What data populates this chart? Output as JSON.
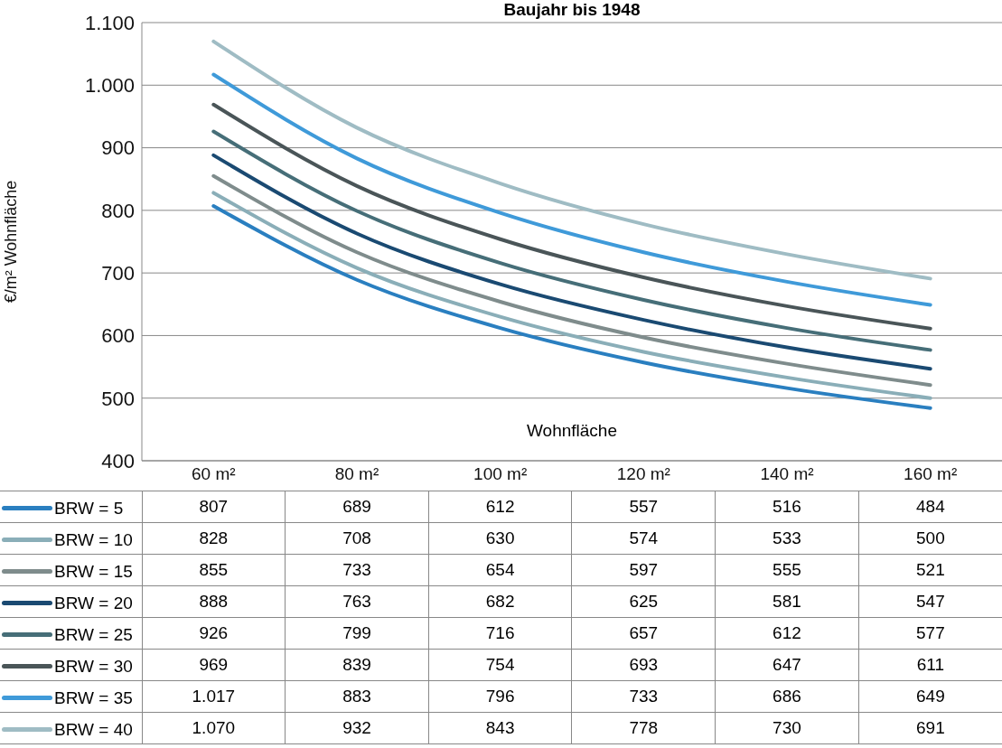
{
  "chart_data": {
    "type": "line",
    "title": "Baujahr bis 1948",
    "xlabel": "Wohnfläche",
    "ylabel": "€/m² Wohnfläche",
    "categories": [
      "60 m²",
      "80 m²",
      "100 m²",
      "120 m²",
      "140 m²",
      "160 m²"
    ],
    "series": [
      {
        "name": "BRW = 5",
        "color": "#2a7fc0",
        "values": [
          807,
          689,
          612,
          557,
          516,
          484
        ],
        "value_labels": [
          "807",
          "689",
          "612",
          "557",
          "516",
          "484"
        ]
      },
      {
        "name": "BRW = 10",
        "color": "#8aaeb8",
        "values": [
          828,
          708,
          630,
          574,
          533,
          500
        ],
        "value_labels": [
          "828",
          "708",
          "630",
          "574",
          "533",
          "500"
        ]
      },
      {
        "name": "BRW = 15",
        "color": "#7f8c8c",
        "values": [
          855,
          733,
          654,
          597,
          555,
          521
        ],
        "value_labels": [
          "855",
          "733",
          "654",
          "597",
          "555",
          "521"
        ]
      },
      {
        "name": "BRW = 20",
        "color": "#1a4a72",
        "values": [
          888,
          763,
          682,
          625,
          581,
          547
        ],
        "value_labels": [
          "888",
          "763",
          "682",
          "625",
          "581",
          "547"
        ]
      },
      {
        "name": "BRW = 25",
        "color": "#466e78",
        "values": [
          926,
          799,
          716,
          657,
          612,
          577
        ],
        "value_labels": [
          "926",
          "799",
          "716",
          "657",
          "612",
          "577"
        ]
      },
      {
        "name": "BRW = 30",
        "color": "#4a5558",
        "values": [
          969,
          839,
          754,
          693,
          647,
          611
        ],
        "value_labels": [
          "969",
          "839",
          "754",
          "693",
          "647",
          "611"
        ]
      },
      {
        "name": "BRW = 35",
        "color": "#3f9ad9",
        "values": [
          1017,
          883,
          796,
          733,
          686,
          649
        ],
        "value_labels": [
          "1.017",
          "883",
          "796",
          "733",
          "686",
          "649"
        ]
      },
      {
        "name": "BRW = 40",
        "color": "#9fbcc4",
        "values": [
          1070,
          932,
          843,
          778,
          730,
          691
        ],
        "value_labels": [
          "1.070",
          "932",
          "843",
          "778",
          "730",
          "691"
        ]
      }
    ],
    "ylim": [
      400,
      1100
    ],
    "yticks": [
      400,
      500,
      600,
      700,
      800,
      900,
      {
        "value": 1000,
        "label": "1.000"
      },
      {
        "value": 1100,
        "label": "1.100"
      }
    ],
    "grid": "y",
    "legend": "bottom left",
    "marker": "none",
    "line_style": "solid"
  }
}
